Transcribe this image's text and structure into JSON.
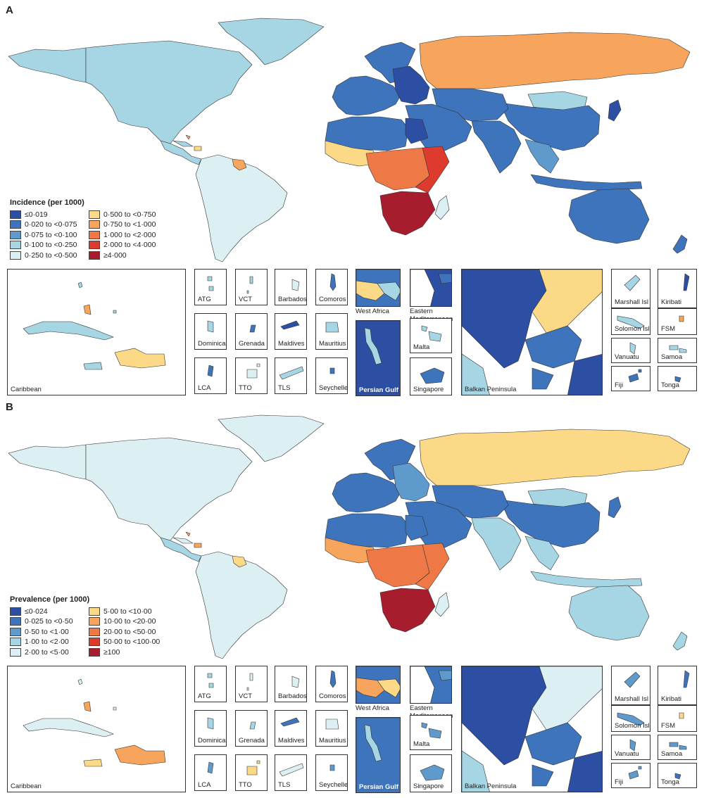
{
  "panels": [
    {
      "letter": "A",
      "legend_title": "Incidence (per 1000)",
      "legend": [
        {
          "label": "≤0·019",
          "color": "#2c4ea3"
        },
        {
          "label": "0·020 to <0·075",
          "color": "#3d74bb"
        },
        {
          "label": "0·075 to <0·100",
          "color": "#5e9bcc"
        },
        {
          "label": "0·100 to <0·250",
          "color": "#a6d5e4"
        },
        {
          "label": "0·250 to <0·500",
          "color": "#dcf0f3"
        },
        {
          "label": "0·500 to <0·750",
          "color": "#fbd987"
        },
        {
          "label": "0·750 to <1·000",
          "color": "#f7a45c"
        },
        {
          "label": "1·000 to <2·000",
          "color": "#ee7846"
        },
        {
          "label": "2·000 to <4·000",
          "color": "#dc3b2e"
        },
        {
          "label": "≥4·000",
          "color": "#a81d2d"
        }
      ],
      "regions": {
        "north_america": "#a6d5e4",
        "greenland": "#a6d5e4",
        "alaska": "#a6d5e4",
        "central_america": "#a6d5e4",
        "south_america": "#dcf0f3",
        "brazil_east": "#dcf0f3",
        "europe_west": "#3d74bb",
        "scandinavia": "#3d74bb",
        "eastern_europe": "#2c4ea3",
        "russia": "#f7a45c",
        "middle_east": "#3d74bb",
        "egypt": "#2c4ea3",
        "north_africa": "#3d74bb",
        "west_africa": "#fbd987",
        "central_africa": "#ee7846",
        "east_africa": "#dc3b2e",
        "southern_africa": "#a81d2d",
        "madagascar": "#dcf0f3",
        "central_asia": "#3d74bb",
        "china": "#3d74bb",
        "india": "#3d74bb",
        "southeast_asia": "#5e9bcc",
        "japan": "#2c4ea3",
        "indonesia": "#3d74bb",
        "australia": "#3d74bb",
        "new_zealand": "#3d74bb",
        "mongolia": "#a6d5e4",
        "cuba": "#a6d5e4",
        "hispaniola": "#fbd987",
        "jamaica": "#a6d5e4",
        "bahamas": "#f7a45c",
        "guyana": "#f7a45c",
        "atg": "#a6d5e4",
        "vct": "#a6d5e4",
        "barbados": "#dcf0f3",
        "comoros": "#3d74bb",
        "dominica": "#a6d5e4",
        "grenada": "#3d74bb",
        "maldives": "#2c4ea3",
        "mauritius": "#a6d5e4",
        "lca": "#3d74bb",
        "tto": "#dcf0f3",
        "tls": "#a6d5e4",
        "seychelles": "#3d74bb",
        "west_africa_inset_a": "#3d74bb",
        "west_africa_inset_b": "#fbd987",
        "west_africa_inset_c": "#a6d5e4",
        "east_med_a": "#2c4ea3",
        "east_med_b": "#3d74bb",
        "persian_gulf": "#2c4ea3",
        "persian_gulf_land": "#a6d5e4",
        "malta": "#a6d5e4",
        "singapore": "#3d74bb",
        "balkan_a": "#2c4ea3",
        "balkan_b": "#3d74bb",
        "balkan_c": "#fbd987",
        "balkan_d": "#a6d5e4",
        "marshall": "#a6d5e4",
        "kiribati": "#2c4ea3",
        "solomon": "#a6d5e4",
        "fsm": "#f7a45c",
        "vanuatu": "#a6d5e4",
        "samoa": "#a6d5e4",
        "fiji": "#3d74bb",
        "tonga": "#3d74bb"
      }
    },
    {
      "letter": "B",
      "legend_title": "Prevalence (per 1000)",
      "legend": [
        {
          "label": "≤0·024",
          "color": "#2c4ea3"
        },
        {
          "label": "0·025 to <0·50",
          "color": "#3d74bb"
        },
        {
          "label": "0·50 to <1·00",
          "color": "#5e9bcc"
        },
        {
          "label": "1·00 to <2·00",
          "color": "#a6d5e4"
        },
        {
          "label": "2·00 to <5·00",
          "color": "#dcf0f3"
        },
        {
          "label": "5·00 to <10·00",
          "color": "#fbd987"
        },
        {
          "label": "10·00 to <20·00",
          "color": "#f7a45c"
        },
        {
          "label": "20·00 to <50·00",
          "color": "#ee7846"
        },
        {
          "label": "50·00 to <100·00",
          "color": "#dc3b2e"
        },
        {
          "label": "≥100",
          "color": "#a81d2d"
        }
      ],
      "regions": {
        "north_america": "#dcf0f3",
        "greenland": "#dcf0f3",
        "alaska": "#dcf0f3",
        "central_america": "#a6d5e4",
        "south_america": "#dcf0f3",
        "brazil_east": "#dcf0f3",
        "europe_west": "#3d74bb",
        "scandinavia": "#3d74bb",
        "eastern_europe": "#5e9bcc",
        "russia": "#fbd987",
        "middle_east": "#3d74bb",
        "egypt": "#3d74bb",
        "north_africa": "#3d74bb",
        "west_africa": "#f7a45c",
        "central_africa": "#ee7846",
        "east_africa": "#ee7846",
        "southern_africa": "#a81d2d",
        "madagascar": "#dcf0f3",
        "central_asia": "#3d74bb",
        "china": "#3d74bb",
        "india": "#a6d5e4",
        "southeast_asia": "#a6d5e4",
        "japan": "#3d74bb",
        "indonesia": "#a6d5e4",
        "australia": "#a6d5e4",
        "new_zealand": "#a6d5e4",
        "mongolia": "#a6d5e4",
        "cuba": "#dcf0f3",
        "hispaniola": "#f7a45c",
        "jamaica": "#fbd987",
        "bahamas": "#f7a45c",
        "guyana": "#fbd987",
        "atg": "#a6d5e4",
        "vct": "#dcf0f3",
        "barbados": "#dcf0f3",
        "comoros": "#3d74bb",
        "dominica": "#a6d5e4",
        "grenada": "#a6d5e4",
        "maldives": "#3d74bb",
        "mauritius": "#dcf0f3",
        "lca": "#5e9bcc",
        "tto": "#fbd987",
        "tls": "#dcf0f3",
        "seychelles": "#5e9bcc",
        "west_africa_inset_a": "#3d74bb",
        "west_africa_inset_b": "#f7a45c",
        "west_africa_inset_c": "#fbd987",
        "east_med_a": "#3d74bb",
        "east_med_b": "#5e9bcc",
        "persian_gulf": "#3d74bb",
        "persian_gulf_land": "#a6d5e4",
        "malta": "#5e9bcc",
        "singapore": "#5e9bcc",
        "balkan_a": "#2c4ea3",
        "balkan_b": "#3d74bb",
        "balkan_c": "#dcf0f3",
        "balkan_d": "#a6d5e4",
        "marshall": "#5e9bcc",
        "kiribati": "#3d74bb",
        "solomon": "#5e9bcc",
        "fsm": "#fbd987",
        "vanuatu": "#5e9bcc",
        "samoa": "#5e9bcc",
        "fiji": "#5e9bcc",
        "tonga": "#3d74bb"
      }
    }
  ],
  "inset_labels": {
    "caribbean": "Caribbean",
    "atg": "ATG",
    "vct": "VCT",
    "barbados": "Barbados",
    "comoros": "Comoros",
    "dominica": "Dominica",
    "grenada": "Grenada",
    "maldives": "Maldives",
    "mauritius": "Mauritius",
    "lca": "LCA",
    "tto": "TTO",
    "tls": "TLS",
    "seychelles": "Seychelles",
    "west_africa": "West Africa",
    "eastern_mediterranean": "Eastern\nMediterranean",
    "persian_gulf": "Persian Gulf",
    "malta": "Malta",
    "singapore": "Singapore",
    "balkan_peninsula": "Balkan Peninsula",
    "marshall": "Marshall Isl",
    "kiribati": "Kiribati",
    "solomon": "Solomon Isl",
    "fsm": "FSM",
    "vanuatu": "Vanuatu",
    "samoa": "Samoa",
    "fiji": "Fiji",
    "tonga": "Tonga"
  }
}
